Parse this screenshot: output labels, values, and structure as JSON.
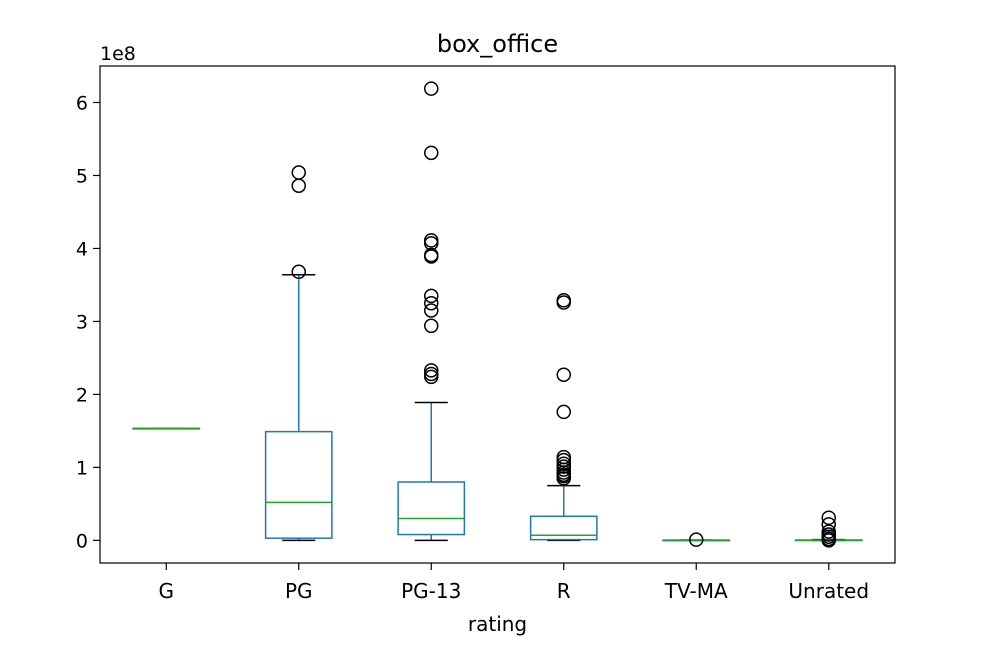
{
  "chart_data": {
    "type": "box",
    "title": "box_office",
    "xlabel": "rating",
    "ylabel": "",
    "y_offset_label": "1e8",
    "ylim": [
      -0.31,
      6.5
    ],
    "yticks": [
      0,
      1,
      2,
      3,
      4,
      5,
      6
    ],
    "categories": [
      "G",
      "PG",
      "PG-13",
      "R",
      "TV-MA",
      "Unrated"
    ],
    "boxes": [
      {
        "q1": 1.535,
        "median": 1.535,
        "q3": 1.535,
        "whisker_low": 1.535,
        "whisker_high": 1.535,
        "outliers": []
      },
      {
        "q1": 0.03,
        "median": 0.52,
        "q3": 1.49,
        "whisker_low": 0.0,
        "whisker_high": 3.64,
        "outliers": [
          3.68,
          4.86,
          5.04
        ]
      },
      {
        "q1": 0.08,
        "median": 0.3,
        "q3": 0.8,
        "whisker_low": 0.0,
        "whisker_high": 1.89,
        "outliers": [
          2.24,
          2.28,
          2.33,
          2.94,
          3.15,
          3.25,
          3.35,
          3.89,
          3.91,
          4.07,
          4.11,
          5.31,
          6.19
        ]
      },
      {
        "q1": 0.01,
        "median": 0.07,
        "q3": 0.33,
        "whisker_low": 0.0,
        "whisker_high": 0.75,
        "outliers": [
          0.85,
          0.88,
          0.9,
          0.93,
          0.97,
          1.01,
          1.05,
          1.1,
          1.14,
          1.76,
          2.27,
          3.26,
          3.29
        ]
      },
      {
        "q1": 0.003,
        "median": 0.003,
        "q3": 0.003,
        "whisker_low": 0.003,
        "whisker_high": 0.003,
        "outliers": [
          0.01
        ]
      },
      {
        "q1": 0.0,
        "median": 0.002,
        "q3": 0.005,
        "whisker_low": 0.0,
        "whisker_high": 0.01,
        "outliers": [
          0.0,
          0.02,
          0.05,
          0.08,
          0.12,
          0.22,
          0.31
        ]
      }
    ],
    "colors": {
      "box": "#1f77b4",
      "median": "#2ca02c",
      "whisker": "#1f77b4",
      "cap": "#000000",
      "flier": "#000000"
    },
    "grid": false,
    "legend": "none"
  }
}
